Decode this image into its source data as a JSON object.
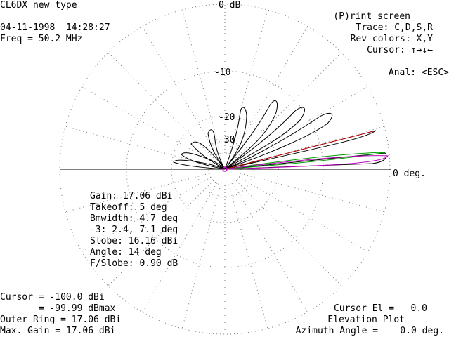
{
  "header": {
    "title": "CL6DX new type",
    "datetime": "04-11-1998  14:28:27",
    "freq": "Freq = 50.2 MHz"
  },
  "menu": {
    "print": "(P)rint screen",
    "trace": "Trace: C,D,S,R",
    "rev_colors": "Rev colors: X,Y",
    "cursor": "Cursor: ↑→↓←",
    "anal": "Anal: <ESC>"
  },
  "rings": {
    "top": "0 dB",
    "r10": "-10",
    "r20": "-20",
    "r30": "-30"
  },
  "axis_right": "0 deg.",
  "stats": {
    "gain": "Gain: 17.06 dBi",
    "takeoff": "Takeoff: 5 deg",
    "bmwidth": "Bmwidth: 4.7 deg",
    "minus3": "-3: 2.4, 7.1 deg",
    "slobe": "Slobe: 16.16 dBi",
    "angle": "Angle: 14 deg",
    "fslobe": "F/Slobe: 0.90 dB"
  },
  "footer_left": {
    "cursor_dbi": "Cursor = -100.0 dBi",
    "cursor_dbmax": "       = -99.99 dBmax",
    "outer_ring": "Outer Ring = 17.06 dBi",
    "max_gain": "Max. Gain = 17.06 dBi"
  },
  "footer_right": {
    "cursor_el": "Cursor El =   0.0",
    "plot_type": "Elevation Plot",
    "azimuth": "Azimuth Angle =    0.0 deg."
  },
  "colors": {
    "main_trace": "#000000",
    "compare_trace_1": "#cc0000",
    "compare_trace_2": "#00a000",
    "compare_trace_3": "#c000c0",
    "grid": "#7a7a7a"
  }
}
